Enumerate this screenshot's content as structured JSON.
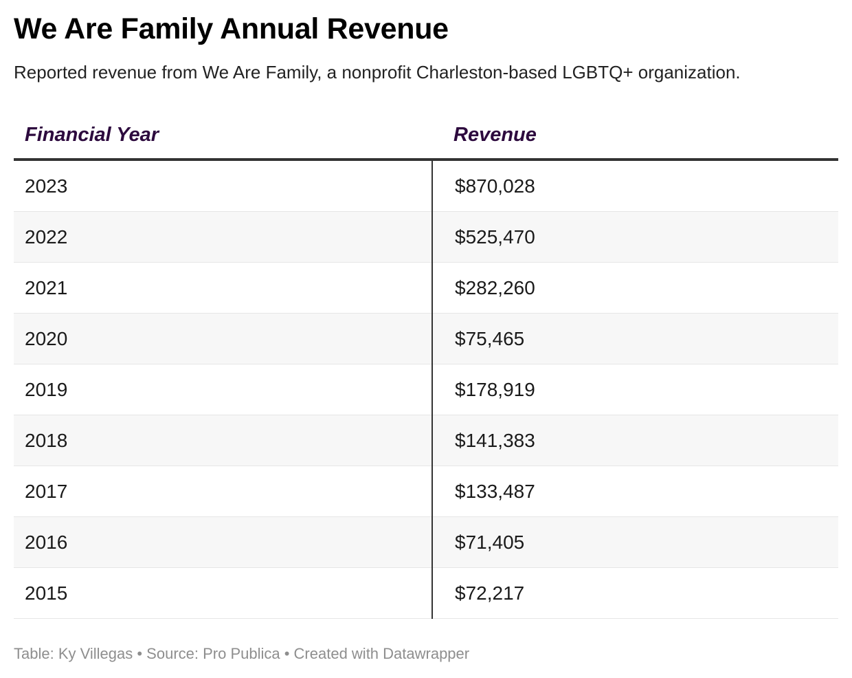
{
  "title": "We Are Family Annual Revenue",
  "subtitle": "Reported revenue from We Are Family, a nonprofit Charleston-based LGBTQ+ organization.",
  "footer": "Table: Ky Villegas • Source: Pro Publica • Created with Datawrapper",
  "colors": {
    "header_text": "#2d0a3e",
    "divider": "#333333",
    "stripe": "#f7f7f7",
    "footer_text": "#8e8e8e"
  },
  "chart_data": {
    "type": "table",
    "title": "We Are Family Annual Revenue",
    "subtitle": "Reported revenue from We Are Family, a nonprofit Charleston-based LGBTQ+ organization.",
    "columns": [
      "Financial Year",
      "Revenue"
    ],
    "rows": [
      {
        "year": "2023",
        "revenue": "$870,028",
        "value": 870028
      },
      {
        "year": "2022",
        "revenue": "$525,470",
        "value": 525470
      },
      {
        "year": "2021",
        "revenue": "$282,260",
        "value": 282260
      },
      {
        "year": "2020",
        "revenue": "$75,465",
        "value": 75465
      },
      {
        "year": "2019",
        "revenue": "$178,919",
        "value": 178919
      },
      {
        "year": "2018",
        "revenue": "$141,383",
        "value": 141383
      },
      {
        "year": "2017",
        "revenue": "$133,487",
        "value": 133487
      },
      {
        "year": "2016",
        "revenue": "$71,405",
        "value": 71405
      },
      {
        "year": "2015",
        "revenue": "$72,217",
        "value": 72217
      }
    ]
  }
}
